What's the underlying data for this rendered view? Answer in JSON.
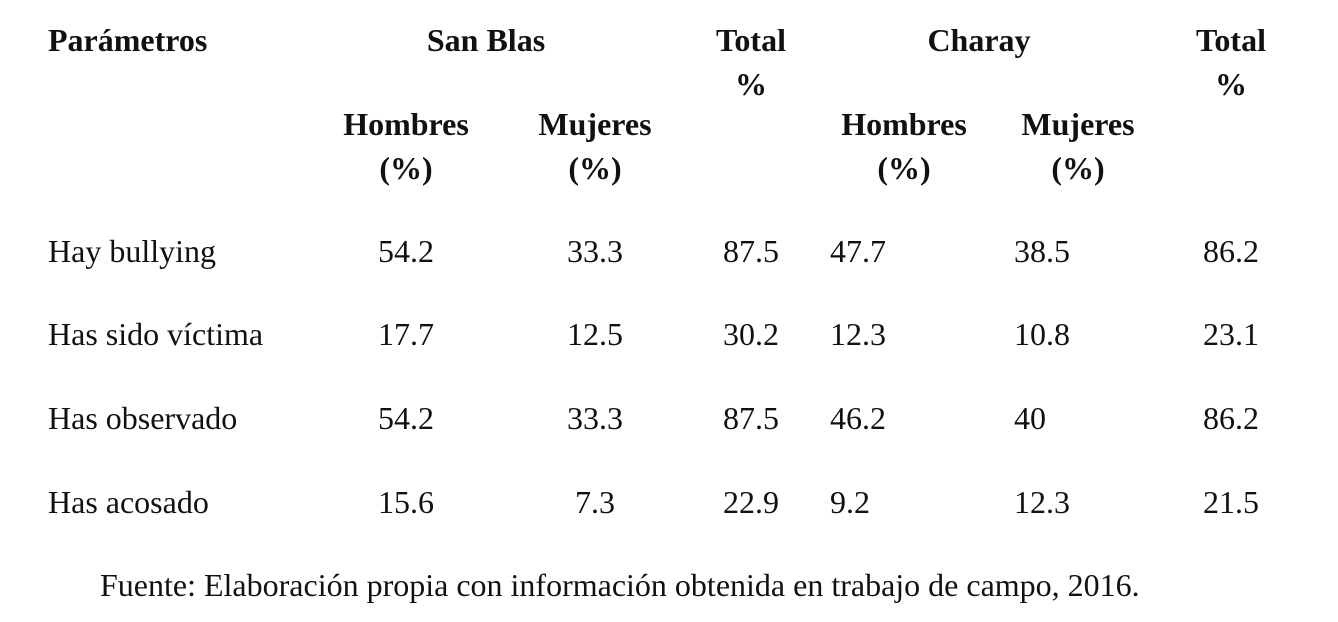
{
  "header": {
    "parametros": "Parámetros",
    "group1": "San Blas",
    "group2": "Charay",
    "total_label": "Total",
    "total_unit": "%",
    "hombres": "Hombres",
    "mujeres": "Mujeres",
    "pct": "(%)"
  },
  "rows": [
    {
      "label": "Hay bullying",
      "sb_h": "54.2",
      "sb_m": "33.3",
      "sb_t": "87.5",
      "ch_h": "47.7",
      "ch_m": "38.5",
      "ch_t": "86.2"
    },
    {
      "label": "Has sido víctima",
      "sb_h": "17.7",
      "sb_m": "12.5",
      "sb_t": "30.2",
      "ch_h": "12.3",
      "ch_m": "10.8",
      "ch_t": "23.1"
    },
    {
      "label": "Has observado",
      "sb_h": "54.2",
      "sb_m": "33.3",
      "sb_t": "87.5",
      "ch_h": "46.2",
      "ch_m": "40",
      "ch_t": "86.2"
    },
    {
      "label": "Has acosado",
      "sb_h": "15.6",
      "sb_m": "7.3",
      "sb_t": "22.9",
      "ch_h": "9.2",
      "ch_m": "12.3",
      "ch_t": "21.5"
    }
  ],
  "source": "Fuente: Elaboración propia con información obtenida en trabajo de campo, 2016."
}
